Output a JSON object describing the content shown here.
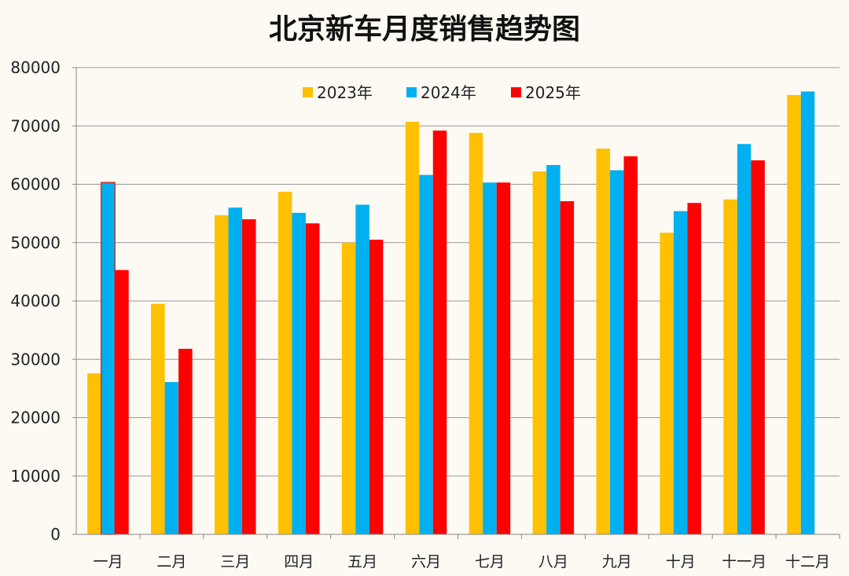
{
  "chart_data": {
    "type": "bar",
    "title": "北京新车月度销售趋势图",
    "xlabel": "",
    "ylabel": "",
    "ylim": [
      0,
      80000
    ],
    "yticks": [
      0,
      10000,
      20000,
      30000,
      40000,
      50000,
      60000,
      70000,
      80000
    ],
    "grid": true,
    "legend_position": "top-center",
    "categories": [
      "一月",
      "二月",
      "三月",
      "四月",
      "五月",
      "六月",
      "七月",
      "八月",
      "九月",
      "十月",
      "十一月",
      "十二月"
    ],
    "series": [
      {
        "name": "2023年",
        "color": "#ffc000",
        "values": [
          27600,
          39500,
          54700,
          58700,
          50000,
          70700,
          68800,
          62200,
          66100,
          51700,
          57400,
          75300
        ]
      },
      {
        "name": "2024年",
        "color": "#00b0f0",
        "values": [
          60300,
          26100,
          56000,
          55100,
          56500,
          61600,
          60300,
          63300,
          62400,
          55400,
          66900,
          75900
        ]
      },
      {
        "name": "2025年",
        "color": "#ff0000",
        "values": [
          45300,
          31800,
          54000,
          53300,
          50500,
          69200,
          60300,
          57100,
          64800,
          56800,
          64100,
          null
        ]
      }
    ]
  }
}
